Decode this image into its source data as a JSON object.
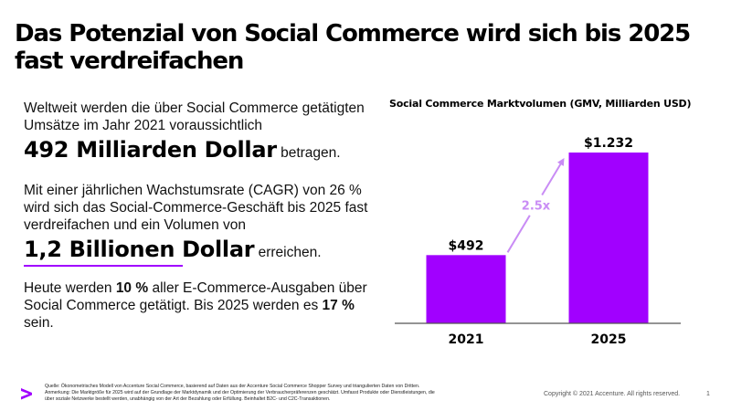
{
  "slide": {
    "title": "Das Potenzial von Social Commerce wird sich bis 2025 fast verdreifachen",
    "paragraph1": {
      "text": "Weltweit werden die über Social Commerce getätigten Umsätze im Jahr 2021 voraussichtlich",
      "highlight": "492 Milliarden Dollar",
      "suffix": " betragen."
    },
    "paragraph2": {
      "text": "Mit einer jährlichen Wachstumsrate (CAGR) von 26 % wird sich das Social-Commerce-Geschäft bis 2025 fast verdreifachen und ein Volumen von",
      "highlight": "1,2 Billionen Dollar",
      "suffix": " erreichen."
    },
    "paragraph3": {
      "part1": "Heute werden ",
      "bold1": "10 %",
      "part2": " aller E-Commerce-Ausgaben über Social Commerce getätigt. Bis 2025 werden es ",
      "bold2": "17 %",
      "part3": " sein."
    }
  },
  "colors": {
    "accent": "#a100ff",
    "arrow": "#c98cf5",
    "axis": "#555555",
    "text": "#000000"
  },
  "chart_data": {
    "type": "bar",
    "title": "Social Commerce Marktvolumen (GMV, Milliarden USD)",
    "categories": [
      "2021",
      "2025"
    ],
    "values": [
      492,
      1232
    ],
    "data_labels": [
      "$492",
      "$1.232"
    ],
    "xlabel": "",
    "ylabel": "",
    "ylim": [
      0,
      1232
    ],
    "grid": false,
    "legend": "none",
    "annotation": {
      "text": "2.5x",
      "type": "growth-arrow",
      "from": "2021",
      "to": "2025"
    }
  },
  "footer": {
    "logo": "accenture-greater-than-logo",
    "note_lines": [
      "Quelle: Ökonometrisches Modell von Accenture Social Commerce, basierend auf Daten aus der Accenture Social Commerce Shopper Survey und triangulierten Daten von Dritten.",
      "Anmerkung: Die Marktgröße für 2025 wird auf der Grundlage der Marktdynamik und der Optimierung der Verbraucherpräferenzen geschätzt. Umfasst Produkte oder Dienstleistungen, die",
      "über soziale Netzwerke bestellt werden, unabhängig von der Art der Bezahlung oder Erfüllung. Beinhaltet B2C- und C2C-Transaktionen."
    ],
    "copyright": "Copyright © 2021 Accenture. All rights reserved.",
    "page_number": "1"
  }
}
